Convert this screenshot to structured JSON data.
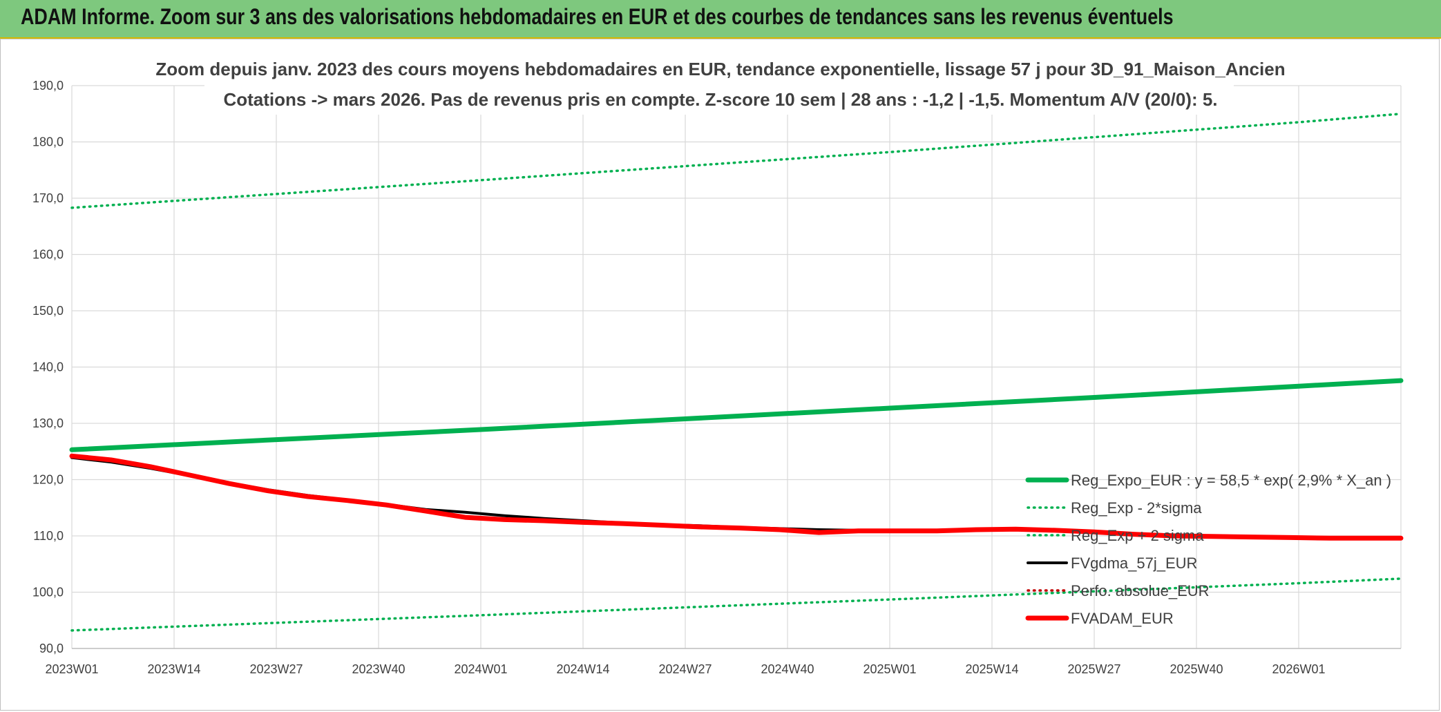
{
  "header": {
    "title": "ADAM Informe. Zoom sur 3 ans des valorisations hebdomadaires en EUR et des courbes de tendances sans les revenus éventuels"
  },
  "chart_data": {
    "type": "line",
    "title_line1": "Zoom depuis janv. 2023 des cours moyens hebdomadaires en EUR, tendance exponentielle, lissage 57 j pour 3D_91_Maison_Ancien",
    "title_line2": "Cotations -> mars 2026. Pas de revenus pris en compte. Z-score 10 sem | 28 ans : -1,2 | -1,5. Momentum A/V (20/0): 5.",
    "x_unit": "weeks since 2023W01",
    "x_ticks": [
      {
        "x": 0,
        "label": "2023W01"
      },
      {
        "x": 13,
        "label": "2023W14"
      },
      {
        "x": 26,
        "label": "2023W27"
      },
      {
        "x": 39,
        "label": "2023W40"
      },
      {
        "x": 52,
        "label": "2024W01"
      },
      {
        "x": 65,
        "label": "2024W14"
      },
      {
        "x": 78,
        "label": "2024W27"
      },
      {
        "x": 91,
        "label": "2024W40"
      },
      {
        "x": 104,
        "label": "2025W01"
      },
      {
        "x": 117,
        "label": "2025W14"
      },
      {
        "x": 130,
        "label": "2025W27"
      },
      {
        "x": 143,
        "label": "2025W40"
      },
      {
        "x": 156,
        "label": "2026W01"
      }
    ],
    "xlim": [
      0,
      169
    ],
    "ylim": [
      90,
      190
    ],
    "y_ticks": [
      "90,0",
      "100,0",
      "110,0",
      "120,0",
      "130,0",
      "140,0",
      "150,0",
      "160,0",
      "170,0",
      "180,0",
      "190,0"
    ],
    "grid": true,
    "legend_position": "bottom-right",
    "series": [
      {
        "name": "Reg_Expo_EUR : y = 58,5 * exp( 2,9% *  X_an )",
        "color": "#00b050",
        "style": "solid",
        "width": "thick",
        "x": [
          0,
          26,
          52,
          78,
          104,
          130,
          156,
          169
        ],
        "values": [
          125.3,
          127.1,
          128.9,
          130.8,
          132.7,
          134.6,
          136.6,
          137.6
        ]
      },
      {
        "name": "Reg_Exp - 2*sigma",
        "color": "#00b050",
        "style": "dotted",
        "width": "thin",
        "x": [
          0,
          52,
          104,
          156,
          169
        ],
        "values": [
          93.2,
          95.9,
          98.7,
          101.6,
          102.4
        ]
      },
      {
        "name": "Reg_Exp + 2 sigma",
        "color": "#00b050",
        "style": "dotted",
        "width": "thin",
        "x": [
          0,
          52,
          104,
          156,
          169
        ],
        "values": [
          168.3,
          173.2,
          178.2,
          183.5,
          185.0
        ]
      },
      {
        "name": "FVgdma_57j_EUR",
        "color": "#000000",
        "style": "solid",
        "width": "medium",
        "x": [
          0,
          5,
          10,
          15,
          20,
          25,
          30,
          35,
          40,
          45,
          50,
          55,
          60,
          65,
          70,
          75,
          80,
          85,
          90,
          95,
          100,
          105,
          110,
          115,
          120,
          125,
          130,
          135,
          140,
          145,
          150,
          155,
          160,
          165,
          169
        ],
        "values": [
          123.9,
          123.1,
          122.0,
          120.7,
          119.4,
          118.2,
          117.2,
          116.4,
          115.6,
          114.7,
          114.2,
          113.6,
          113.1,
          112.7,
          112.3,
          112.0,
          111.8,
          111.5,
          111.3,
          111.1,
          111.0,
          110.9,
          111.0,
          111.1,
          111.2,
          111.0,
          110.7,
          110.4,
          110.2,
          110.0,
          109.9,
          109.8,
          109.7,
          109.6,
          109.6
        ]
      },
      {
        "name": "Perfo. absolue_EUR",
        "color": "#c00000",
        "style": "dotted",
        "width": "thin",
        "x": [
          0,
          5,
          10,
          15,
          20,
          25,
          30,
          35,
          40,
          45,
          50,
          55,
          60,
          65,
          70,
          75,
          80,
          85,
          90,
          95,
          100,
          105,
          110,
          115,
          120,
          125,
          130,
          135,
          140,
          145,
          150,
          155,
          160,
          165,
          169
        ],
        "values": [
          124.2,
          123.5,
          122.3,
          120.8,
          119.3,
          118.0,
          117.0,
          116.3,
          115.5,
          114.4,
          113.3,
          112.9,
          112.7,
          112.4,
          112.2,
          111.9,
          111.6,
          111.4,
          111.1,
          110.6,
          110.9,
          110.9,
          110.9,
          111.1,
          111.2,
          111.0,
          110.7,
          110.3,
          110.0,
          109.9,
          109.8,
          109.7,
          109.6,
          109.6,
          109.6
        ]
      },
      {
        "name": "FVADAM_EUR",
        "color": "#ff0000",
        "style": "solid",
        "width": "thick",
        "x": [
          0,
          5,
          10,
          15,
          20,
          25,
          30,
          35,
          40,
          45,
          50,
          55,
          60,
          65,
          70,
          75,
          80,
          85,
          90,
          95,
          100,
          105,
          110,
          115,
          120,
          125,
          130,
          135,
          140,
          145,
          150,
          155,
          160,
          165,
          169
        ],
        "values": [
          124.2,
          123.5,
          122.3,
          120.8,
          119.3,
          118.0,
          117.0,
          116.3,
          115.5,
          114.4,
          113.3,
          112.9,
          112.7,
          112.4,
          112.2,
          111.9,
          111.6,
          111.4,
          111.1,
          110.6,
          110.9,
          110.9,
          110.9,
          111.1,
          111.2,
          111.0,
          110.7,
          110.3,
          110.0,
          109.9,
          109.8,
          109.7,
          109.6,
          109.6,
          109.6
        ]
      }
    ]
  }
}
